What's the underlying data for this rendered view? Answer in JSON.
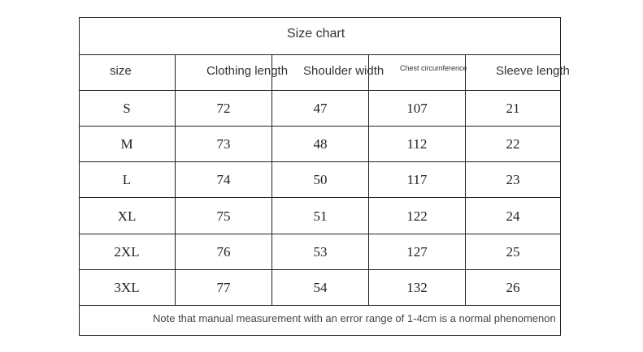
{
  "title": "Size chart",
  "headers": [
    "size",
    "Clothing length",
    "Shoulder width",
    "Chest circumference",
    "Sleeve length"
  ],
  "rows": [
    [
      "S",
      "72",
      "47",
      "107",
      "21"
    ],
    [
      "M",
      "73",
      "48",
      "112",
      "22"
    ],
    [
      "L",
      "74",
      "50",
      "117",
      "23"
    ],
    [
      "XL",
      "75",
      "51",
      "122",
      "24"
    ],
    [
      "2XL",
      "76",
      "53",
      "127",
      "25"
    ],
    [
      "3XL",
      "77",
      "54",
      "132",
      "26"
    ]
  ],
  "note": "Note that manual measurement with an error range of 1-4cm is a normal phenomenon"
}
